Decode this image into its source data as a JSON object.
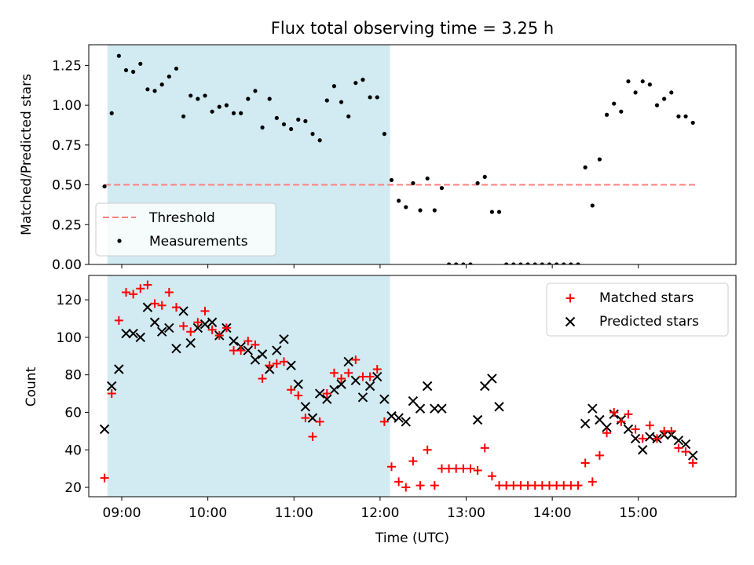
{
  "colors": {
    "shade": "#add8e6",
    "threshold": "#ff7f7f",
    "matched": "#ff0000",
    "predicted": "#000000",
    "measurement": "#000000"
  },
  "chart_data": [
    {
      "type": "scatter",
      "title": "Flux total observing time = 3.25 h",
      "xlabel": "",
      "ylabel": "Matched/Predicted stars",
      "ylim": [
        0,
        1.38
      ],
      "yticks": [
        "0.00",
        "0.25",
        "0.50",
        "0.75",
        "1.00",
        "1.25"
      ],
      "xlim": [
        "08:37",
        "16:08"
      ],
      "shaded_interval": [
        "08:50",
        "12:07"
      ],
      "legend_position": "lower-left",
      "series": [
        {
          "name": "Threshold",
          "style": "dashed-line",
          "x": [
            "08:48",
            "15:40"
          ],
          "y": [
            0.5,
            0.5
          ]
        },
        {
          "name": "Measurements",
          "style": "dot",
          "points": [
            [
              "08:48",
              0.49
            ],
            [
              "08:53",
              0.95
            ],
            [
              "08:58",
              1.31
            ],
            [
              "09:03",
              1.22
            ],
            [
              "09:08",
              1.21
            ],
            [
              "09:13",
              1.26
            ],
            [
              "09:18",
              1.1
            ],
            [
              "09:23",
              1.09
            ],
            [
              "09:28",
              1.13
            ],
            [
              "09:33",
              1.18
            ],
            [
              "09:38",
              1.23
            ],
            [
              "09:43",
              0.93
            ],
            [
              "09:48",
              1.06
            ],
            [
              "09:53",
              1.04
            ],
            [
              "09:58",
              1.06
            ],
            [
              "10:03",
              0.96
            ],
            [
              "10:08",
              0.99
            ],
            [
              "10:13",
              1.0
            ],
            [
              "10:18",
              0.95
            ],
            [
              "10:23",
              0.95
            ],
            [
              "10:28",
              1.04
            ],
            [
              "10:33",
              1.09
            ],
            [
              "10:38",
              0.86
            ],
            [
              "10:43",
              1.04
            ],
            [
              "10:48",
              0.92
            ],
            [
              "10:53",
              0.88
            ],
            [
              "10:58",
              0.85
            ],
            [
              "11:03",
              0.91
            ],
            [
              "11:08",
              0.9
            ],
            [
              "11:13",
              0.82
            ],
            [
              "11:18",
              0.78
            ],
            [
              "11:23",
              1.03
            ],
            [
              "11:28",
              1.12
            ],
            [
              "11:33",
              1.02
            ],
            [
              "11:38",
              0.93
            ],
            [
              "11:43",
              1.14
            ],
            [
              "11:48",
              1.16
            ],
            [
              "11:53",
              1.05
            ],
            [
              "11:58",
              1.05
            ],
            [
              "12:03",
              0.82
            ],
            [
              "12:08",
              0.53
            ],
            [
              "12:13",
              0.4
            ],
            [
              "12:18",
              0.36
            ],
            [
              "12:23",
              0.51
            ],
            [
              "12:28",
              0.34
            ],
            [
              "12:33",
              0.54
            ],
            [
              "12:38",
              0.34
            ],
            [
              "12:43",
              0.48
            ],
            [
              "12:48",
              0.0
            ],
            [
              "12:53",
              0.0
            ],
            [
              "12:58",
              0.0
            ],
            [
              "13:03",
              0.0
            ],
            [
              "13:08",
              0.51
            ],
            [
              "13:13",
              0.55
            ],
            [
              "13:18",
              0.33
            ],
            [
              "13:23",
              0.33
            ],
            [
              "13:28",
              0.0
            ],
            [
              "13:33",
              0.0
            ],
            [
              "13:38",
              0.0
            ],
            [
              "13:43",
              0.0
            ],
            [
              "13:48",
              0.0
            ],
            [
              "13:53",
              0.0
            ],
            [
              "13:58",
              0.0
            ],
            [
              "14:03",
              0.0
            ],
            [
              "14:08",
              0.0
            ],
            [
              "14:13",
              0.0
            ],
            [
              "14:18",
              0.0
            ],
            [
              "14:23",
              0.61
            ],
            [
              "14:28",
              0.37
            ],
            [
              "14:33",
              0.66
            ],
            [
              "14:38",
              0.94
            ],
            [
              "14:43",
              1.01
            ],
            [
              "14:48",
              0.96
            ],
            [
              "14:53",
              1.15
            ],
            [
              "14:58",
              1.08
            ],
            [
              "15:03",
              1.15
            ],
            [
              "15:08",
              1.13
            ],
            [
              "15:13",
              1.0
            ],
            [
              "15:18",
              1.04
            ],
            [
              "15:23",
              1.08
            ],
            [
              "15:28",
              0.93
            ],
            [
              "15:33",
              0.93
            ],
            [
              "15:38",
              0.89
            ]
          ]
        }
      ]
    },
    {
      "type": "scatter",
      "title": "",
      "xlabel": "Time (UTC)",
      "ylabel": "Count",
      "ylim": [
        15,
        133
      ],
      "yticks": [
        "20",
        "40",
        "60",
        "80",
        "100",
        "120"
      ],
      "xlim": [
        "08:37",
        "16:08"
      ],
      "xticks": [
        "09:00",
        "10:00",
        "11:00",
        "12:00",
        "13:00",
        "14:00",
        "15:00"
      ],
      "shaded_interval": [
        "08:50",
        "12:07"
      ],
      "legend_position": "upper-right",
      "series": [
        {
          "name": "Matched stars",
          "marker": "plus",
          "points": [
            [
              "08:48",
              25
            ],
            [
              "08:53",
              70
            ],
            [
              "08:58",
              109
            ],
            [
              "09:03",
              124
            ],
            [
              "09:08",
              123
            ],
            [
              "09:13",
              126
            ],
            [
              "09:18",
              128
            ],
            [
              "09:23",
              118
            ],
            [
              "09:28",
              117
            ],
            [
              "09:33",
              124
            ],
            [
              "09:38",
              116
            ],
            [
              "09:43",
              106
            ],
            [
              "09:48",
              103
            ],
            [
              "09:53",
              108
            ],
            [
              "09:58",
              114
            ],
            [
              "10:03",
              104
            ],
            [
              "10:08",
              101
            ],
            [
              "10:13",
              105
            ],
            [
              "10:18",
              93
            ],
            [
              "10:23",
              93
            ],
            [
              "10:28",
              98
            ],
            [
              "10:33",
              96
            ],
            [
              "10:38",
              78
            ],
            [
              "10:43",
              85
            ],
            [
              "10:48",
              86
            ],
            [
              "10:53",
              87
            ],
            [
              "10:58",
              72
            ],
            [
              "11:03",
              69
            ],
            [
              "11:08",
              57
            ],
            [
              "11:13",
              47
            ],
            [
              "11:18",
              55
            ],
            [
              "11:23",
              70
            ],
            [
              "11:28",
              81
            ],
            [
              "11:33",
              78
            ],
            [
              "11:38",
              81
            ],
            [
              "11:43",
              88
            ],
            [
              "11:48",
              79
            ],
            [
              "11:53",
              79
            ],
            [
              "11:58",
              83
            ],
            [
              "12:03",
              55
            ],
            [
              "12:08",
              31
            ],
            [
              "12:13",
              23
            ],
            [
              "12:18",
              20
            ],
            [
              "12:23",
              34
            ],
            [
              "12:28",
              21
            ],
            [
              "12:33",
              40
            ],
            [
              "12:38",
              21
            ],
            [
              "12:43",
              30
            ],
            [
              "12:48",
              30
            ],
            [
              "12:53",
              30
            ],
            [
              "12:58",
              30
            ],
            [
              "13:03",
              30
            ],
            [
              "13:08",
              29
            ],
            [
              "13:13",
              41
            ],
            [
              "13:18",
              26
            ],
            [
              "13:23",
              21
            ],
            [
              "13:28",
              21
            ],
            [
              "13:33",
              21
            ],
            [
              "13:38",
              21
            ],
            [
              "13:43",
              21
            ],
            [
              "13:48",
              21
            ],
            [
              "13:53",
              21
            ],
            [
              "13:58",
              21
            ],
            [
              "14:03",
              21
            ],
            [
              "14:08",
              21
            ],
            [
              "14:13",
              21
            ],
            [
              "14:18",
              21
            ],
            [
              "14:23",
              33
            ],
            [
              "14:28",
              23
            ],
            [
              "14:33",
              37
            ],
            [
              "14:38",
              49
            ],
            [
              "14:43",
              60
            ],
            [
              "14:48",
              55
            ],
            [
              "14:53",
              59
            ],
            [
              "14:58",
              51
            ],
            [
              "15:03",
              46
            ],
            [
              "15:08",
              53
            ],
            [
              "15:13",
              46
            ],
            [
              "15:18",
              50
            ],
            [
              "15:23",
              50
            ],
            [
              "15:28",
              41
            ],
            [
              "15:33",
              39
            ],
            [
              "15:38",
              33
            ]
          ]
        },
        {
          "name": "Predicted stars",
          "marker": "x",
          "points": [
            [
              "08:48",
              51
            ],
            [
              "08:53",
              74
            ],
            [
              "08:58",
              83
            ],
            [
              "09:03",
              102
            ],
            [
              "09:08",
              102
            ],
            [
              "09:13",
              100
            ],
            [
              "09:18",
              116
            ],
            [
              "09:23",
              108
            ],
            [
              "09:28",
              103
            ],
            [
              "09:33",
              105
            ],
            [
              "09:38",
              94
            ],
            [
              "09:43",
              114
            ],
            [
              "09:48",
              97
            ],
            [
              "09:53",
              105
            ],
            [
              "09:58",
              107
            ],
            [
              "10:03",
              108
            ],
            [
              "10:08",
              101
            ],
            [
              "10:13",
              105
            ],
            [
              "10:18",
              98
            ],
            [
              "10:23",
              95
            ],
            [
              "10:28",
              93
            ],
            [
              "10:33",
              88
            ],
            [
              "10:38",
              91
            ],
            [
              "10:43",
              83
            ],
            [
              "10:48",
              93
            ],
            [
              "10:53",
              99
            ],
            [
              "10:58",
              85
            ],
            [
              "11:03",
              75
            ],
            [
              "11:08",
              63
            ],
            [
              "11:13",
              57
            ],
            [
              "11:18",
              70
            ],
            [
              "11:23",
              67
            ],
            [
              "11:28",
              72
            ],
            [
              "11:33",
              75
            ],
            [
              "11:38",
              87
            ],
            [
              "11:43",
              77
            ],
            [
              "11:48",
              68
            ],
            [
              "11:53",
              74
            ],
            [
              "11:58",
              79
            ],
            [
              "12:03",
              67
            ],
            [
              "12:08",
              58
            ],
            [
              "12:13",
              57
            ],
            [
              "12:18",
              55
            ],
            [
              "12:23",
              66
            ],
            [
              "12:28",
              62
            ],
            [
              "12:33",
              74
            ],
            [
              "12:38",
              62
            ],
            [
              "12:43",
              62
            ],
            [
              "13:08",
              56
            ],
            [
              "13:13",
              74
            ],
            [
              "13:18",
              78
            ],
            [
              "13:23",
              63
            ],
            [
              "14:23",
              54
            ],
            [
              "14:28",
              62
            ],
            [
              "14:33",
              56
            ],
            [
              "14:38",
              52
            ],
            [
              "14:43",
              59
            ],
            [
              "14:48",
              56
            ],
            [
              "14:53",
              51
            ],
            [
              "14:58",
              46
            ],
            [
              "15:03",
              40
            ],
            [
              "15:08",
              47
            ],
            [
              "15:13",
              46
            ],
            [
              "15:18",
              48
            ],
            [
              "15:23",
              48
            ],
            [
              "15:28",
              45
            ],
            [
              "15:33",
              43
            ],
            [
              "15:38",
              37
            ]
          ]
        }
      ]
    }
  ]
}
